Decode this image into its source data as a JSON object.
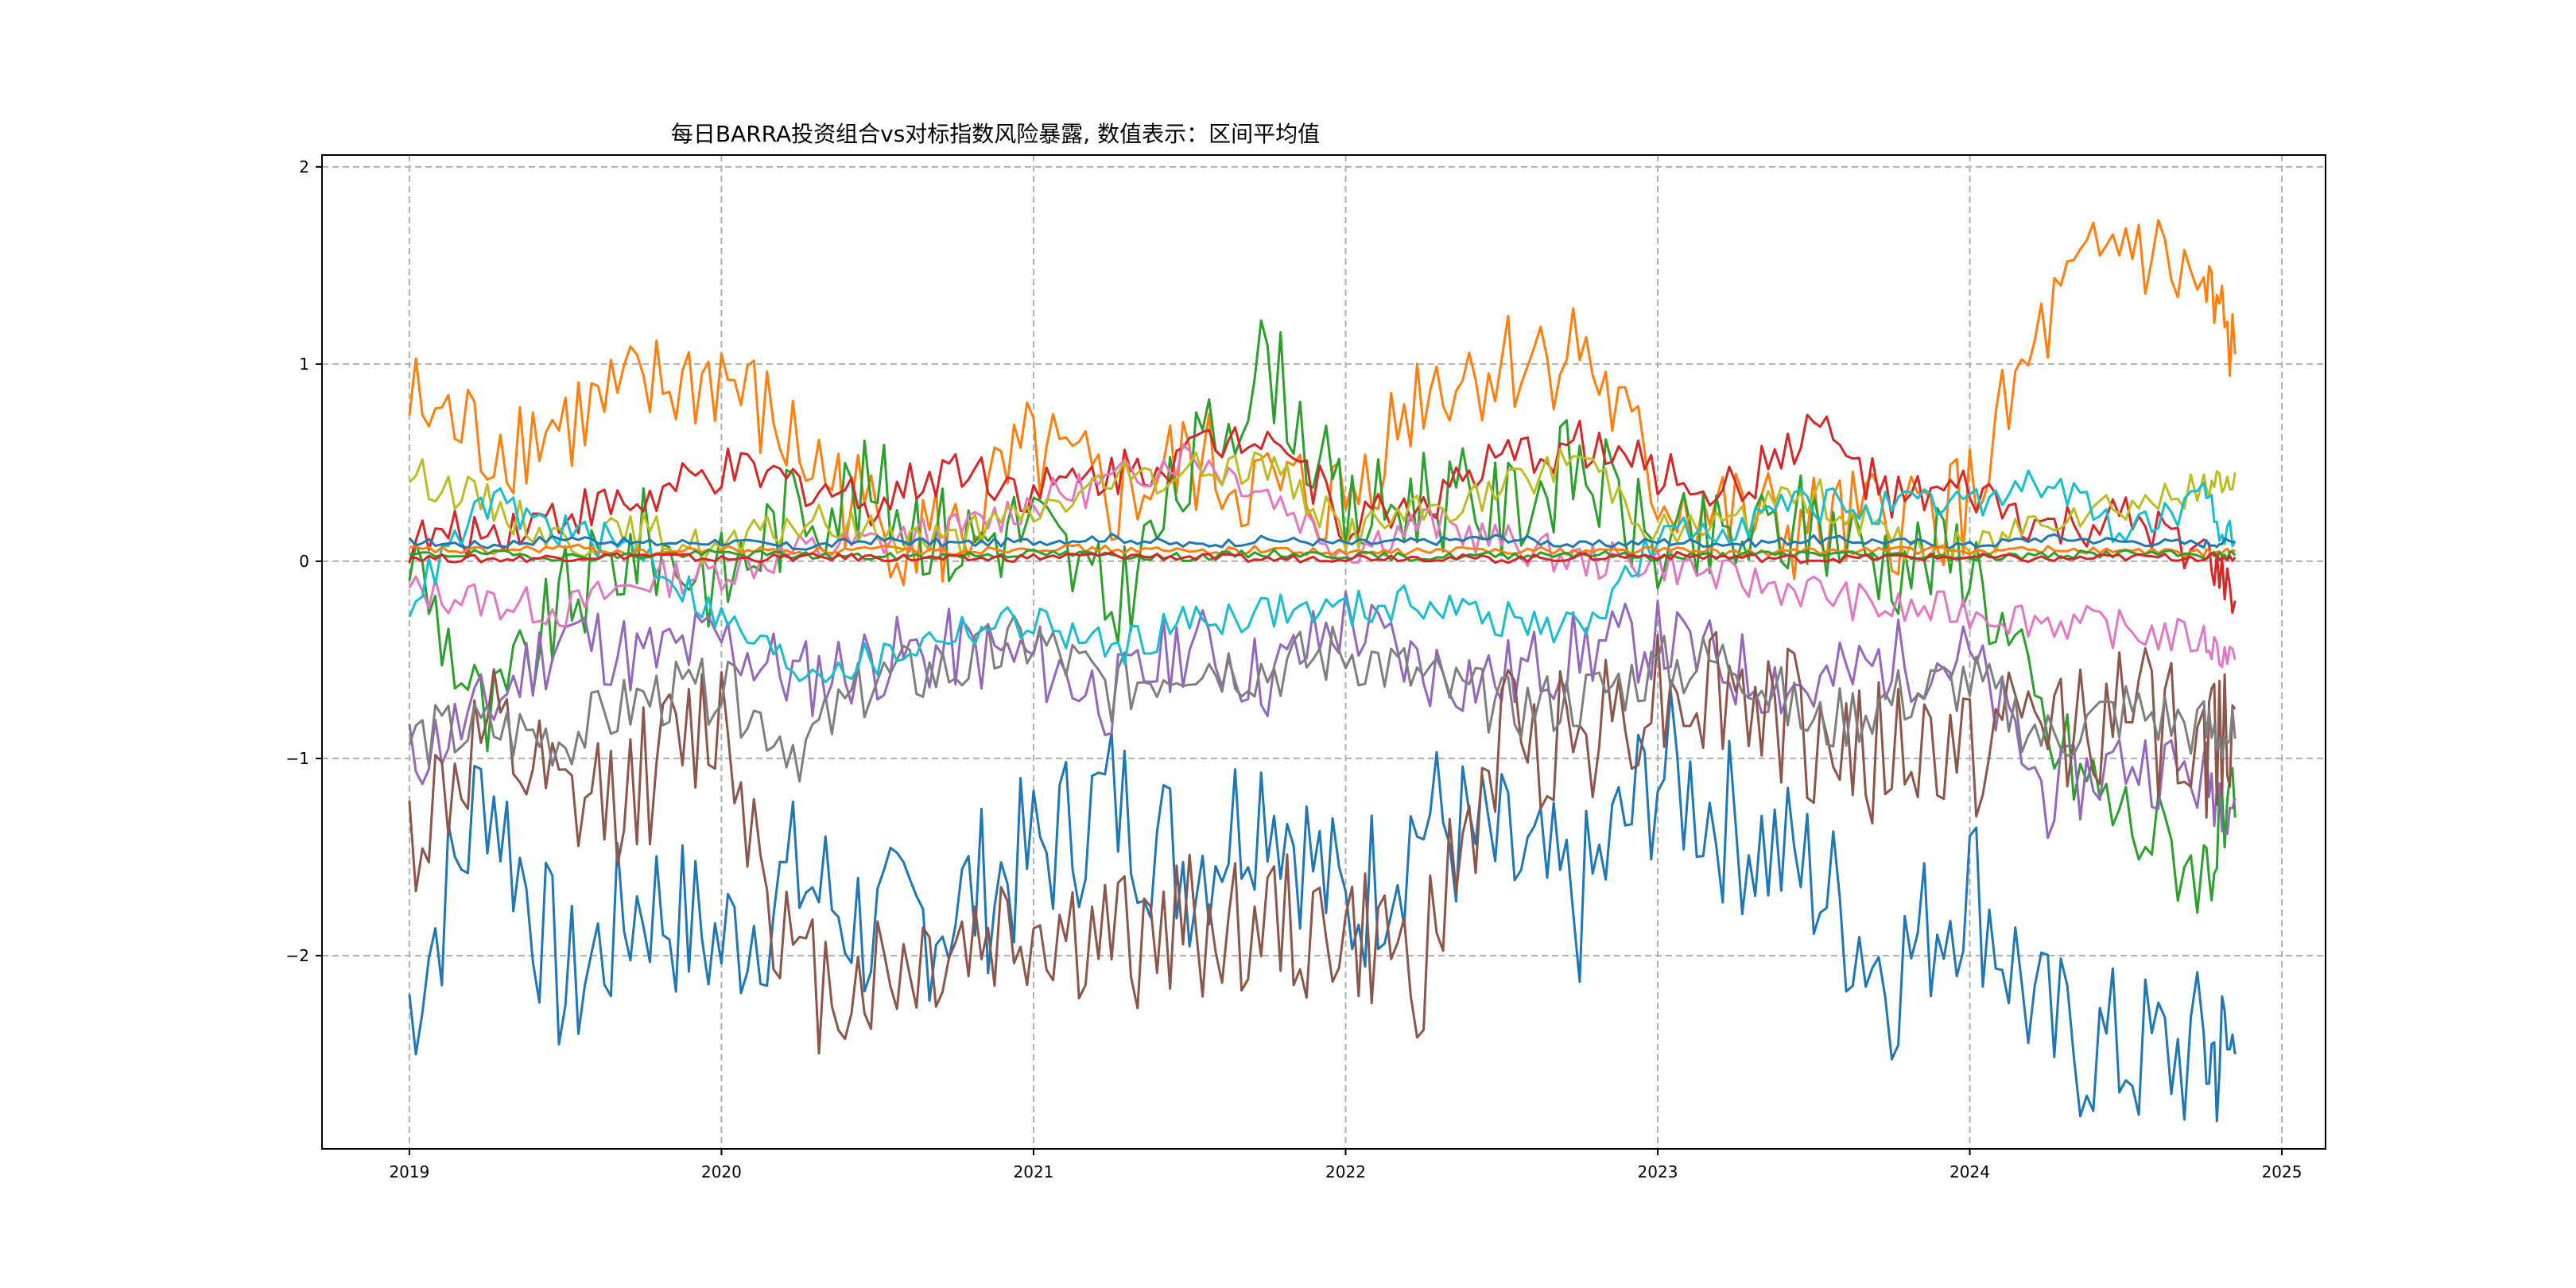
{
  "chart_data": {
    "type": "line",
    "title": "每日BARRA投资组合vs对标指数风险暴露, 数值表示：区间平均值",
    "xlabel": "",
    "ylabel": "",
    "xlim": [
      2018.72,
      2025.14
    ],
    "ylim": [
      -2.98,
      2.06
    ],
    "x_ticks": [
      2019,
      2020,
      2021,
      2022,
      2023,
      2024,
      2025
    ],
    "x_tick_labels": [
      "2019",
      "2020",
      "2021",
      "2022",
      "2023",
      "2024",
      "2025"
    ],
    "y_ticks": [
      -2,
      -1,
      0,
      1,
      2
    ],
    "y_tick_labels": [
      "−2",
      "−1",
      "0",
      "1",
      "2"
    ],
    "grid": true,
    "grid_style": "dashed",
    "legend": "none",
    "colors": [
      "#1f77b4",
      "#ff7f0e",
      "#2ca02c",
      "#d62728",
      "#9467bd",
      "#8c564b",
      "#e377c2",
      "#7f7f7f",
      "#bcbd22",
      "#17becf"
    ],
    "x": [
      2019.0,
      2019.25,
      2019.5,
      2019.75,
      2020.0,
      2020.25,
      2020.5,
      2020.75,
      2021.0,
      2021.25,
      2021.5,
      2021.75,
      2022.0,
      2022.25,
      2022.5,
      2022.75,
      2023.0,
      2023.25,
      2023.5,
      2023.75,
      2024.0,
      2024.25,
      2024.5,
      2024.75,
      2024.85
    ],
    "series": [
      {
        "values": [
          -2.25,
          -1.1,
          -2.2,
          -1.7,
          -1.95,
          -1.6,
          -1.9,
          -1.75,
          -1.5,
          -1.2,
          -1.55,
          -1.15,
          -1.8,
          -1.3,
          -1.5,
          -1.75,
          -1.05,
          -1.35,
          -1.6,
          -2.1,
          -1.6,
          -2.4,
          -2.5,
          -2.5,
          -2.5
        ]
      },
      {
        "values": [
          0.8,
          0.6,
          0.7,
          0.85,
          0.95,
          0.55,
          0.2,
          0.1,
          0.55,
          0.3,
          0.5,
          0.35,
          0.3,
          0.9,
          1.0,
          1.1,
          0.35,
          0.2,
          0.15,
          0.2,
          0.3,
          1.2,
          1.65,
          1.35,
          1.05
        ]
      },
      {
        "values": [
          0.05,
          -0.85,
          -0.2,
          0.1,
          -0.1,
          0.3,
          0.35,
          0.1,
          0.2,
          -0.25,
          0.45,
          1.05,
          0.2,
          0.35,
          0.25,
          0.5,
          0.05,
          0.1,
          0.2,
          0.0,
          0.05,
          -0.9,
          -1.3,
          -1.55,
          -1.3
        ]
      },
      {
        "values": [
          0.1,
          0.15,
          0.25,
          0.3,
          0.45,
          0.4,
          0.3,
          0.5,
          0.35,
          0.45,
          0.55,
          0.7,
          0.2,
          0.3,
          0.5,
          0.6,
          0.45,
          0.35,
          0.7,
          0.3,
          0.35,
          0.15,
          0.2,
          0.05,
          -0.2
        ]
      },
      {
        "values": [
          -1.0,
          -0.75,
          -0.35,
          -0.5,
          -0.4,
          -0.6,
          -0.5,
          -0.45,
          -0.5,
          -0.7,
          -0.4,
          -0.6,
          -0.3,
          -0.55,
          -0.6,
          -0.45,
          -0.4,
          -0.55,
          -0.65,
          -0.5,
          -0.5,
          -1.2,
          -1.0,
          -1.1,
          -1.2
        ]
      },
      {
        "values": [
          -1.4,
          -0.9,
          -1.3,
          -1.1,
          -0.75,
          -2.15,
          -2.1,
          -1.95,
          -1.85,
          -1.95,
          -1.85,
          -1.85,
          -1.9,
          -2.05,
          -0.9,
          -0.85,
          -0.65,
          -0.65,
          -0.9,
          -1.0,
          -0.95,
          -0.8,
          -0.75,
          -1.0,
          -0.75
        ]
      },
      {
        "values": [
          -0.15,
          -0.2,
          -0.25,
          -0.1,
          -0.05,
          0.05,
          0.1,
          0.15,
          0.3,
          0.4,
          0.55,
          0.35,
          0.05,
          0.2,
          0.1,
          0.0,
          0.0,
          -0.1,
          -0.15,
          -0.25,
          -0.25,
          -0.3,
          -0.35,
          -0.4,
          -0.5
        ]
      },
      {
        "values": [
          -0.9,
          -0.85,
          -0.9,
          -0.7,
          -0.65,
          -0.95,
          -0.6,
          -0.55,
          -0.4,
          -0.65,
          -0.5,
          -0.55,
          -0.45,
          -0.6,
          -0.75,
          -0.7,
          -0.55,
          -0.5,
          -0.85,
          -0.7,
          -0.6,
          -0.9,
          -0.75,
          -0.85,
          -0.9
        ]
      },
      {
        "values": [
          0.45,
          0.3,
          0.1,
          0.15,
          0.05,
          0.2,
          0.15,
          0.1,
          0.25,
          0.4,
          0.45,
          0.5,
          0.15,
          0.25,
          0.35,
          0.55,
          0.15,
          0.2,
          0.35,
          0.1,
          0.05,
          0.25,
          0.3,
          0.35,
          0.45
        ]
      },
      {
        "values": [
          -0.2,
          0.3,
          0.15,
          0.05,
          -0.3,
          -0.55,
          -0.5,
          -0.35,
          -0.3,
          -0.45,
          -0.3,
          -0.25,
          -0.25,
          -0.2,
          -0.3,
          -0.35,
          0.1,
          0.2,
          0.3,
          0.25,
          0.3,
          0.4,
          0.15,
          0.3,
          0.1
        ]
      },
      {
        "values": [
          0.1,
          0.08,
          0.12,
          0.09,
          0.1,
          0.07,
          0.11,
          0.09,
          0.1,
          0.12,
          0.08,
          0.11,
          0.09,
          0.1,
          0.12,
          0.08,
          0.1,
          0.09,
          0.11,
          0.1,
          0.08,
          0.12,
          0.1,
          0.09,
          0.1
        ]
      },
      {
        "values": [
          0.06,
          0.05,
          0.07,
          0.04,
          0.06,
          0.05,
          0.06,
          0.05,
          0.07,
          0.06,
          0.05,
          0.06,
          0.04,
          0.05,
          0.06,
          0.05,
          0.06,
          0.04,
          0.05,
          0.06,
          0.05,
          0.06,
          0.05,
          0.04,
          0.05
        ]
      },
      {
        "values": [
          0.03,
          0.04,
          0.02,
          0.03,
          0.04,
          0.03,
          0.02,
          0.03,
          0.04,
          0.03,
          0.02,
          0.04,
          0.03,
          0.02,
          0.03,
          0.04,
          0.02,
          0.03,
          0.04,
          0.03,
          0.02,
          0.03,
          0.04,
          0.03,
          0.03
        ]
      },
      {
        "values": [
          0.02,
          0.01,
          0.02,
          0.03,
          0.01,
          0.02,
          0.02,
          0.01,
          0.02,
          0.03,
          0.02,
          0.01,
          0.02,
          0.02,
          0.01,
          0.02,
          0.03,
          0.02,
          0.01,
          0.02,
          0.02,
          0.01,
          0.02,
          0.02,
          0.02
        ]
      }
    ]
  }
}
